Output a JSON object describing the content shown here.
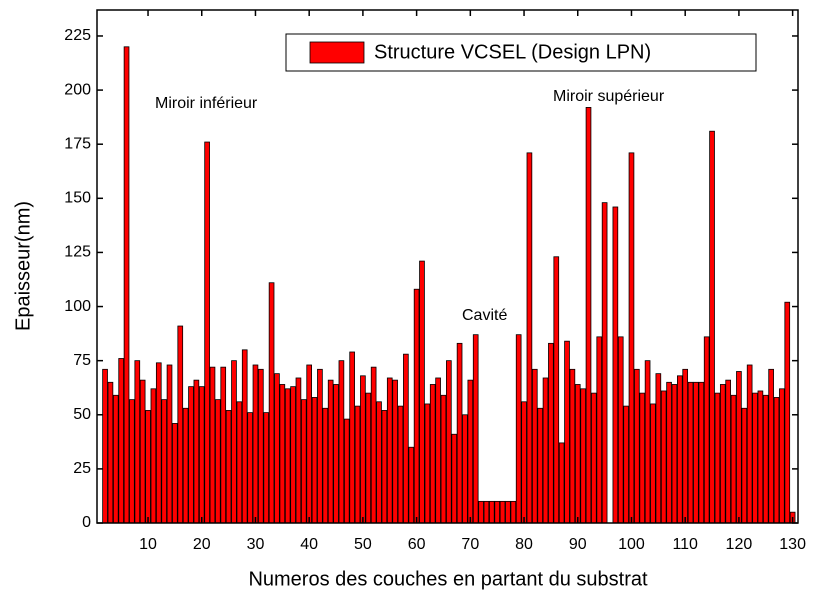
{
  "chart_data": {
    "type": "bar",
    "xlabel": "Numeros des couches en partant du substrat",
    "ylabel": "Epaisseur(nm)",
    "series": [
      {
        "name": "Structure VCSEL (Design LPN)",
        "color": "#ff0000",
        "x": [
          2,
          3,
          4,
          5,
          6,
          7,
          8,
          9,
          10,
          11,
          12,
          13,
          14,
          15,
          16,
          17,
          18,
          19,
          20,
          21,
          22,
          23,
          24,
          25,
          26,
          27,
          28,
          29,
          30,
          31,
          32,
          33,
          34,
          35,
          36,
          37,
          38,
          39,
          40,
          41,
          42,
          43,
          44,
          45,
          46,
          47,
          48,
          49,
          50,
          51,
          52,
          53,
          54,
          55,
          56,
          57,
          58,
          59,
          60,
          61,
          62,
          63,
          64,
          65,
          66,
          67,
          68,
          69,
          70,
          71,
          72,
          73,
          74,
          75,
          76,
          77,
          78,
          79,
          80,
          81,
          82,
          83,
          84,
          85,
          86,
          87,
          88,
          89,
          90,
          91,
          92,
          93,
          94,
          95,
          96,
          97,
          98,
          99,
          100,
          101,
          102,
          103,
          104,
          105,
          106,
          107,
          108,
          109,
          110,
          111,
          112,
          113,
          114,
          115,
          116,
          117,
          118,
          119,
          120,
          121,
          122,
          123,
          124,
          125,
          126,
          127,
          128,
          129,
          130
        ],
        "values": [
          71,
          65,
          59,
          76,
          220,
          57,
          75,
          66,
          52,
          62,
          74,
          57,
          73,
          46,
          91,
          53,
          63,
          66,
          63,
          176,
          72,
          57,
          72,
          52,
          75,
          56,
          80,
          51,
          73,
          71,
          51,
          111,
          69,
          64,
          62,
          63,
          67,
          57,
          73,
          58,
          71,
          53,
          66,
          64,
          75,
          48,
          79,
          54,
          68,
          60,
          72,
          56,
          52,
          67,
          66,
          54,
          78,
          35,
          108,
          121,
          55,
          64,
          67,
          59,
          75,
          41,
          83,
          50,
          66,
          87,
          10,
          10,
          10,
          10,
          10,
          10,
          10,
          87,
          56,
          171,
          71,
          53,
          67,
          83,
          123,
          37,
          84,
          71,
          64,
          62,
          192,
          60,
          86,
          148,
          0,
          146,
          86,
          54,
          171,
          71,
          60,
          75,
          55,
          69,
          61,
          65,
          64,
          68,
          71,
          65,
          65,
          65,
          86,
          181,
          60,
          64,
          66,
          59,
          70,
          53,
          73,
          60,
          61,
          59,
          71,
          58,
          62,
          102,
          5
        ]
      }
    ],
    "xlim": [
      0.5,
      131
    ],
    "xticks": [
      10,
      20,
      30,
      40,
      50,
      60,
      70,
      80,
      90,
      100,
      110,
      120,
      130
    ],
    "ylim": [
      0,
      237
    ],
    "yticks": [
      0,
      25,
      50,
      75,
      100,
      125,
      150,
      175,
      200,
      225
    ],
    "annotations": [
      "Miroir inférieur",
      "Miroir supérieur",
      "Cavité"
    ],
    "legend": "upper right"
  }
}
